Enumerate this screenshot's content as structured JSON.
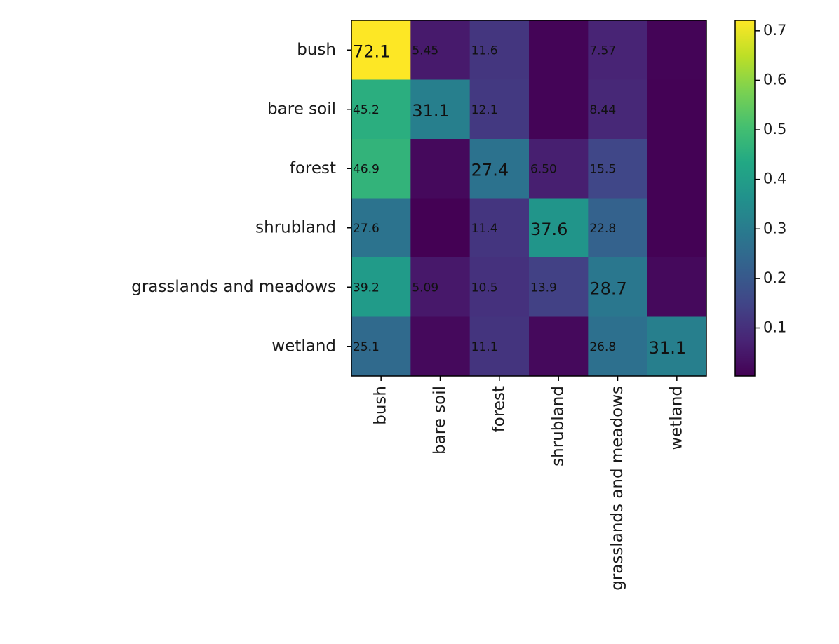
{
  "chart_data": {
    "type": "heatmap",
    "title": "",
    "xlabel": "",
    "ylabel": "",
    "rows": [
      "bush",
      "bare soil",
      "forest",
      "shrubland",
      "grasslands and meadows",
      "wetland"
    ],
    "columns": [
      "bush",
      "bare soil",
      "forest",
      "shrubland",
      "grasslands and meadows",
      "wetland"
    ],
    "values": [
      [
        0.721,
        0.0545,
        0.116,
        0.01,
        0.0757,
        0.01
      ],
      [
        0.452,
        0.311,
        0.121,
        0.01,
        0.0844,
        0.005
      ],
      [
        0.469,
        0.02,
        0.274,
        0.065,
        0.155,
        0.005
      ],
      [
        0.276,
        0.003,
        0.114,
        0.376,
        0.228,
        0.005
      ],
      [
        0.392,
        0.0509,
        0.105,
        0.139,
        0.287,
        0.02
      ],
      [
        0.251,
        0.02,
        0.111,
        0.02,
        0.268,
        0.311
      ]
    ],
    "cell_labels": [
      [
        "72.1",
        "5.45",
        "11.6",
        "",
        "7.57",
        ""
      ],
      [
        "45.2",
        "31.1",
        "12.1",
        "",
        "8.44",
        ""
      ],
      [
        "46.9",
        "",
        "27.4",
        "6.50",
        "15.5",
        ""
      ],
      [
        "27.6",
        "",
        "11.4",
        "37.6",
        "22.8",
        ""
      ],
      [
        "39.2",
        "5.09",
        "10.5",
        "13.9",
        "28.7",
        ""
      ],
      [
        "25.1",
        "",
        "11.1",
        "",
        "26.8",
        "31.1"
      ]
    ],
    "colormap": "viridis",
    "colorbar": {
      "min": 0.003,
      "max": 0.721,
      "ticks": [
        0.1,
        0.2,
        0.3,
        0.4,
        0.5,
        0.6,
        0.7
      ],
      "tick_labels": [
        "0.1",
        "0.2",
        "0.3",
        "0.4",
        "0.5",
        "0.6",
        "0.7"
      ]
    },
    "grid": false,
    "legend": "colorbar-right"
  }
}
